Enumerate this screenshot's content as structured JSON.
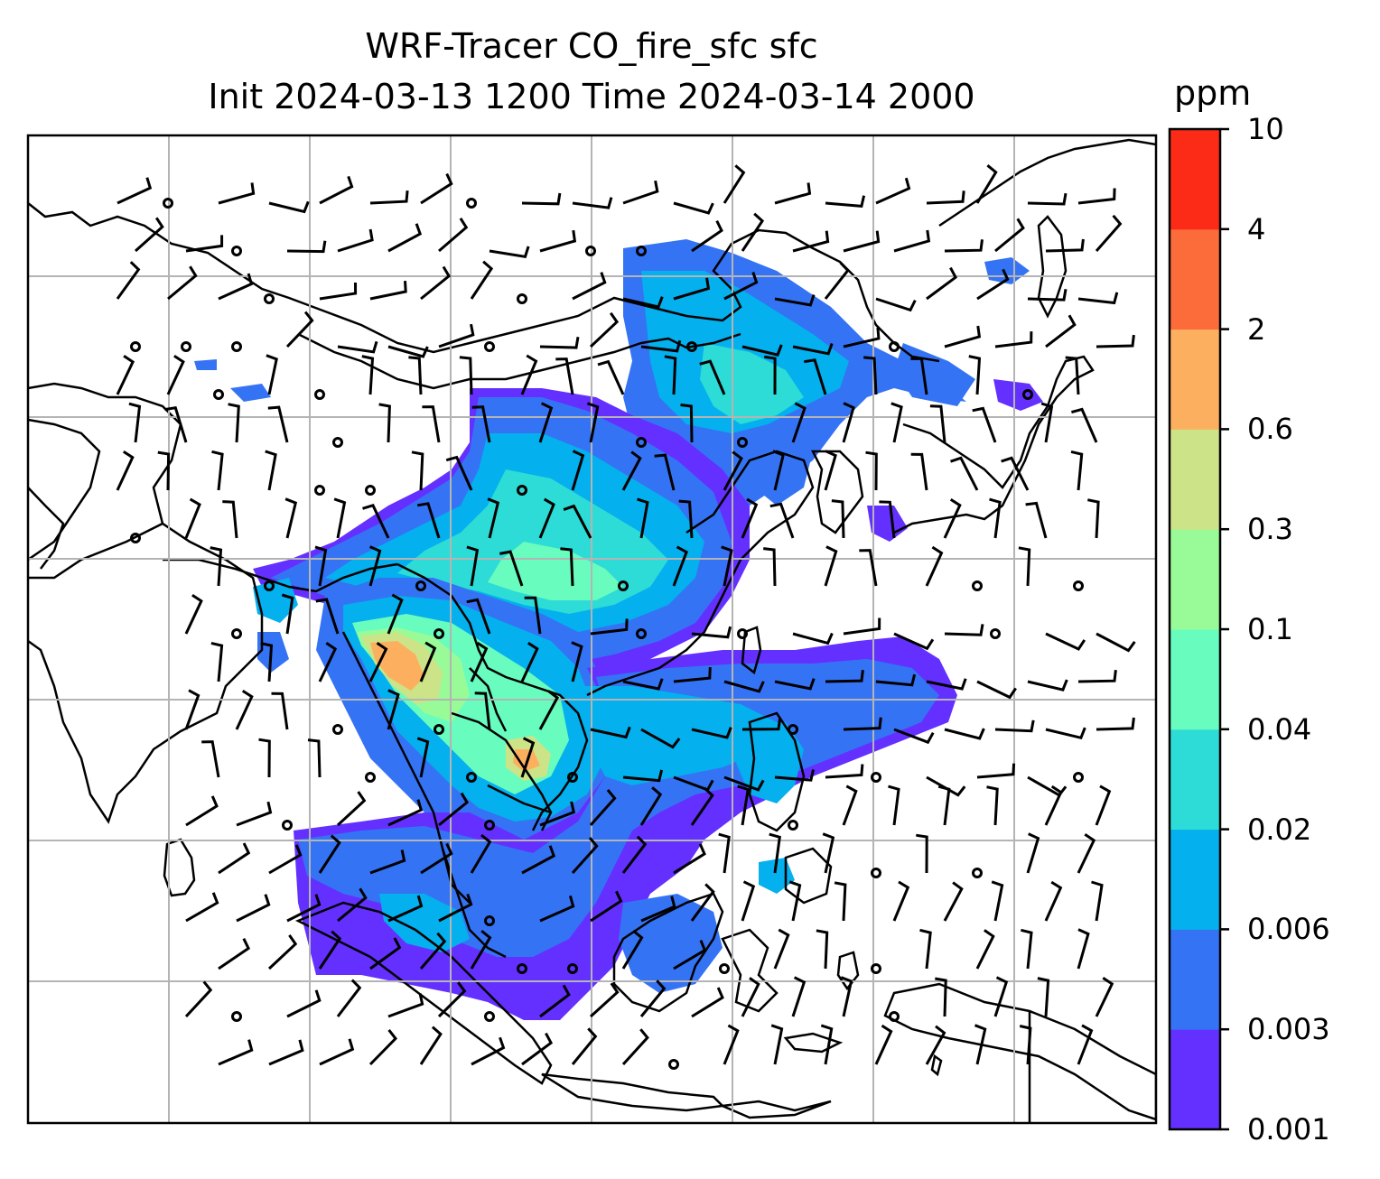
{
  "title": {
    "line1": "WRF-Tracer CO_fire_sfc sfc",
    "line2": "Init 2024-03-13 1200 Time 2024-03-14 2000"
  },
  "colorbar": {
    "unit": "ppm",
    "levels": [
      "0.001",
      "0.003",
      "0.006",
      "0.02",
      "0.04",
      "0.1",
      "0.3",
      "0.6",
      "2",
      "4",
      "10"
    ],
    "colors": [
      "#6430ff",
      "#3573f5",
      "#04b0ee",
      "#2ddcd6",
      "#68fcbe",
      "#98fb98",
      "#cde387",
      "#fcb05f",
      "#fc6b3a",
      "#fc2b17"
    ]
  },
  "colors": {
    "land_line": "#000000",
    "grid": "#b4b4b4",
    "background": "#ffffff"
  }
}
